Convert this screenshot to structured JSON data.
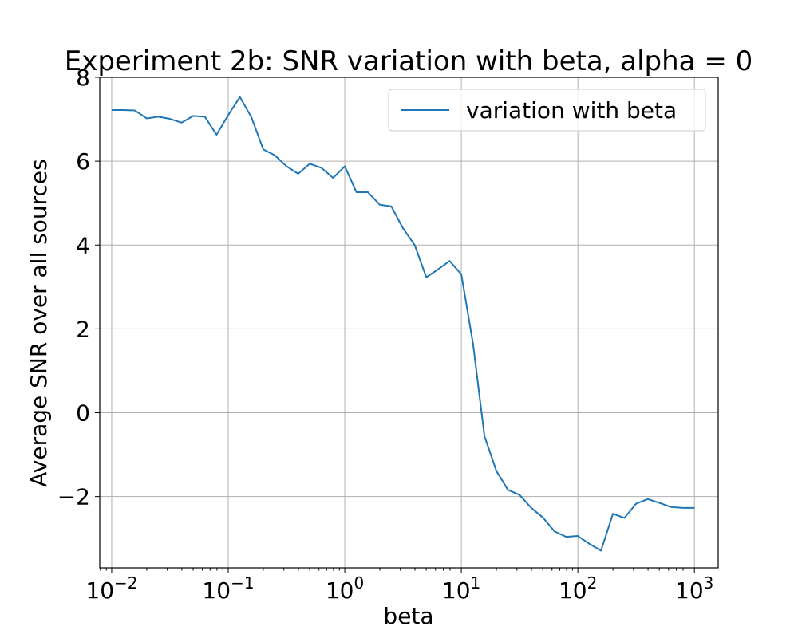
{
  "chart_data": {
    "type": "line",
    "title": "Experiment 2b: SNR variation with beta, alpha = 0",
    "xlabel": "beta",
    "ylabel": "Average SNR over all sources",
    "xscale": "log",
    "xlim": [
      0.0079,
      1600
    ],
    "ylim": [
      -3.7,
      8.0
    ],
    "grid": true,
    "legend_position": "top-right",
    "x_ticks": [
      {
        "value": 0.01,
        "base": "10",
        "exp": "−2"
      },
      {
        "value": 0.1,
        "base": "10",
        "exp": "−1"
      },
      {
        "value": 1,
        "base": "10",
        "exp": "0"
      },
      {
        "value": 10,
        "base": "10",
        "exp": "1"
      },
      {
        "value": 100,
        "base": "10",
        "exp": "2"
      },
      {
        "value": 1000,
        "base": "10",
        "exp": "3"
      }
    ],
    "y_ticks": [
      {
        "value": -2,
        "label": "−2"
      },
      {
        "value": 0,
        "label": "0"
      },
      {
        "value": 2,
        "label": "2"
      },
      {
        "value": 4,
        "label": "4"
      },
      {
        "value": 6,
        "label": "6"
      },
      {
        "value": 8,
        "label": "8"
      }
    ],
    "series": [
      {
        "name": "variation with beta",
        "color": "#1f77b4",
        "x": [
          0.01,
          0.0126,
          0.0158,
          0.02,
          0.0251,
          0.0316,
          0.0398,
          0.0501,
          0.0631,
          0.0794,
          0.1,
          0.126,
          0.158,
          0.2,
          0.251,
          0.316,
          0.398,
          0.501,
          0.631,
          0.794,
          1.0,
          1.26,
          1.58,
          2.0,
          2.51,
          3.16,
          3.98,
          5.01,
          6.31,
          7.94,
          10.0,
          12.6,
          15.8,
          20.0,
          25.1,
          31.6,
          39.8,
          50.1,
          63.1,
          79.4,
          100,
          126,
          158,
          200,
          251,
          316,
          398,
          501,
          631,
          794,
          1000
        ],
        "y": [
          7.22,
          7.22,
          7.21,
          7.02,
          7.06,
          7.01,
          6.92,
          7.08,
          7.06,
          6.63,
          7.1,
          7.53,
          7.05,
          6.28,
          6.14,
          5.88,
          5.7,
          5.94,
          5.84,
          5.6,
          5.88,
          5.26,
          5.26,
          4.96,
          4.92,
          4.4,
          4.0,
          3.23,
          3.42,
          3.62,
          3.3,
          1.65,
          -0.56,
          -1.39,
          -1.84,
          -1.96,
          -2.27,
          -2.5,
          -2.83,
          -2.96,
          -2.94,
          -3.13,
          -3.29,
          -2.41,
          -2.51,
          -2.17,
          -2.06,
          -2.15,
          -2.25,
          -2.27,
          -2.27
        ]
      }
    ]
  }
}
